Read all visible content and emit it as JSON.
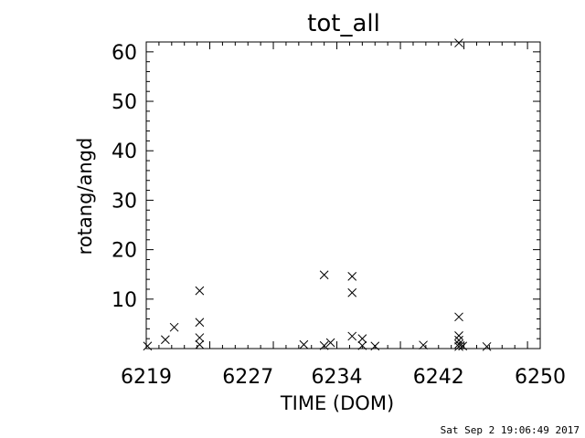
{
  "chart_data": {
    "type": "scatter",
    "title": "tot_all",
    "xlabel": "TIME (DOM)",
    "ylabel": "rotang/angd",
    "xlim": [
      6219,
      6250
    ],
    "ylim": [
      0,
      62
    ],
    "x_ticks": [
      6219,
      6227,
      6234,
      6242,
      6250
    ],
    "x_tick_labels": [
      "6219",
      "6227",
      "6234",
      "6242",
      "6250"
    ],
    "y_ticks": [
      10,
      20,
      30,
      40,
      50,
      60
    ],
    "y_tick_labels": [
      "10",
      "20",
      "30",
      "40",
      "50",
      "60"
    ],
    "grid": false,
    "marker": "x",
    "color": "#000000",
    "points": [
      {
        "x": 6219.1,
        "y": 0.5
      },
      {
        "x": 6220.5,
        "y": 1.8
      },
      {
        "x": 6221.2,
        "y": 4.3
      },
      {
        "x": 6223.2,
        "y": 11.7
      },
      {
        "x": 6223.2,
        "y": 5.3
      },
      {
        "x": 6223.2,
        "y": 2.2
      },
      {
        "x": 6223.2,
        "y": 0.8
      },
      {
        "x": 6231.4,
        "y": 0.8
      },
      {
        "x": 6233.0,
        "y": 14.9
      },
      {
        "x": 6233.0,
        "y": 0.6
      },
      {
        "x": 6233.5,
        "y": 1.2
      },
      {
        "x": 6235.2,
        "y": 14.6
      },
      {
        "x": 6235.2,
        "y": 11.3
      },
      {
        "x": 6235.2,
        "y": 2.5
      },
      {
        "x": 6236.0,
        "y": 2.0
      },
      {
        "x": 6236.0,
        "y": 0.6
      },
      {
        "x": 6237.0,
        "y": 0.5
      },
      {
        "x": 6240.8,
        "y": 0.7
      },
      {
        "x": 6243.6,
        "y": 61.8
      },
      {
        "x": 6243.6,
        "y": 6.4
      },
      {
        "x": 6243.6,
        "y": 2.6
      },
      {
        "x": 6243.6,
        "y": 1.7
      },
      {
        "x": 6243.6,
        "y": 0.9
      },
      {
        "x": 6243.6,
        "y": 0.4
      },
      {
        "x": 6243.9,
        "y": 0.5
      },
      {
        "x": 6245.8,
        "y": 0.4
      }
    ]
  },
  "timestamp": "Sat Sep  2 19:06:49 2017"
}
